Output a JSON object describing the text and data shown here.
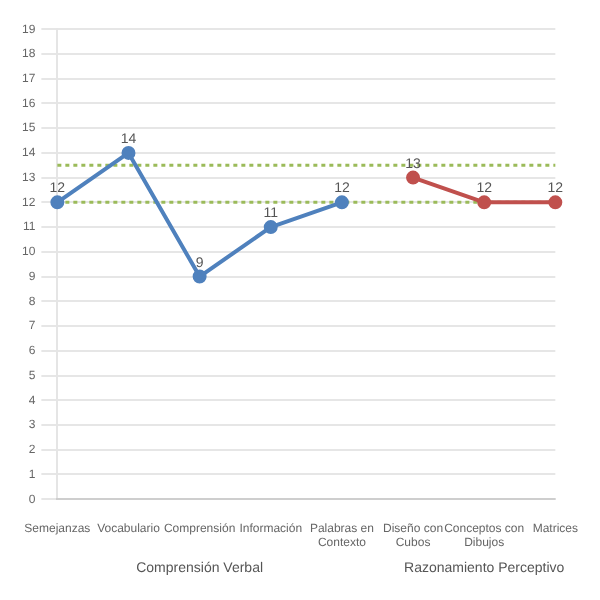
{
  "chart_data": {
    "type": "line",
    "categories": [
      "Semejanzas",
      "Vocabulario",
      "Comprensión",
      "Información",
      "Palabras en Contexto",
      "Diseño con Cubos",
      "Conceptos con Dibujos",
      "Matrices"
    ],
    "series": [
      {
        "color": "#4f81bd",
        "values": [
          12,
          14,
          9,
          11,
          12,
          null,
          null,
          null
        ]
      },
      {
        "color": "#c0504d",
        "values": [
          null,
          null,
          null,
          null,
          null,
          13,
          12,
          12
        ]
      }
    ],
    "ylim": [
      0,
      19
    ],
    "yticks": [
      0,
      1,
      2,
      3,
      4,
      5,
      6,
      7,
      8,
      9,
      10,
      11,
      12,
      13,
      14,
      15,
      16,
      17,
      18,
      19
    ],
    "ref_lines": [
      {
        "axis": "y",
        "value": 13.5,
        "color": "#9bbb59",
        "line_style": "dotted"
      },
      {
        "axis": "y",
        "value": 12,
        "color": "#9bbb59",
        "line_style": "dotted"
      }
    ],
    "annotations": [
      "Comprensión Verbal",
      "Razonamiento Perceptivo"
    ],
    "data_labels": true,
    "grid": "y",
    "legend": false,
    "marker": "circle",
    "line_style": "solid"
  }
}
